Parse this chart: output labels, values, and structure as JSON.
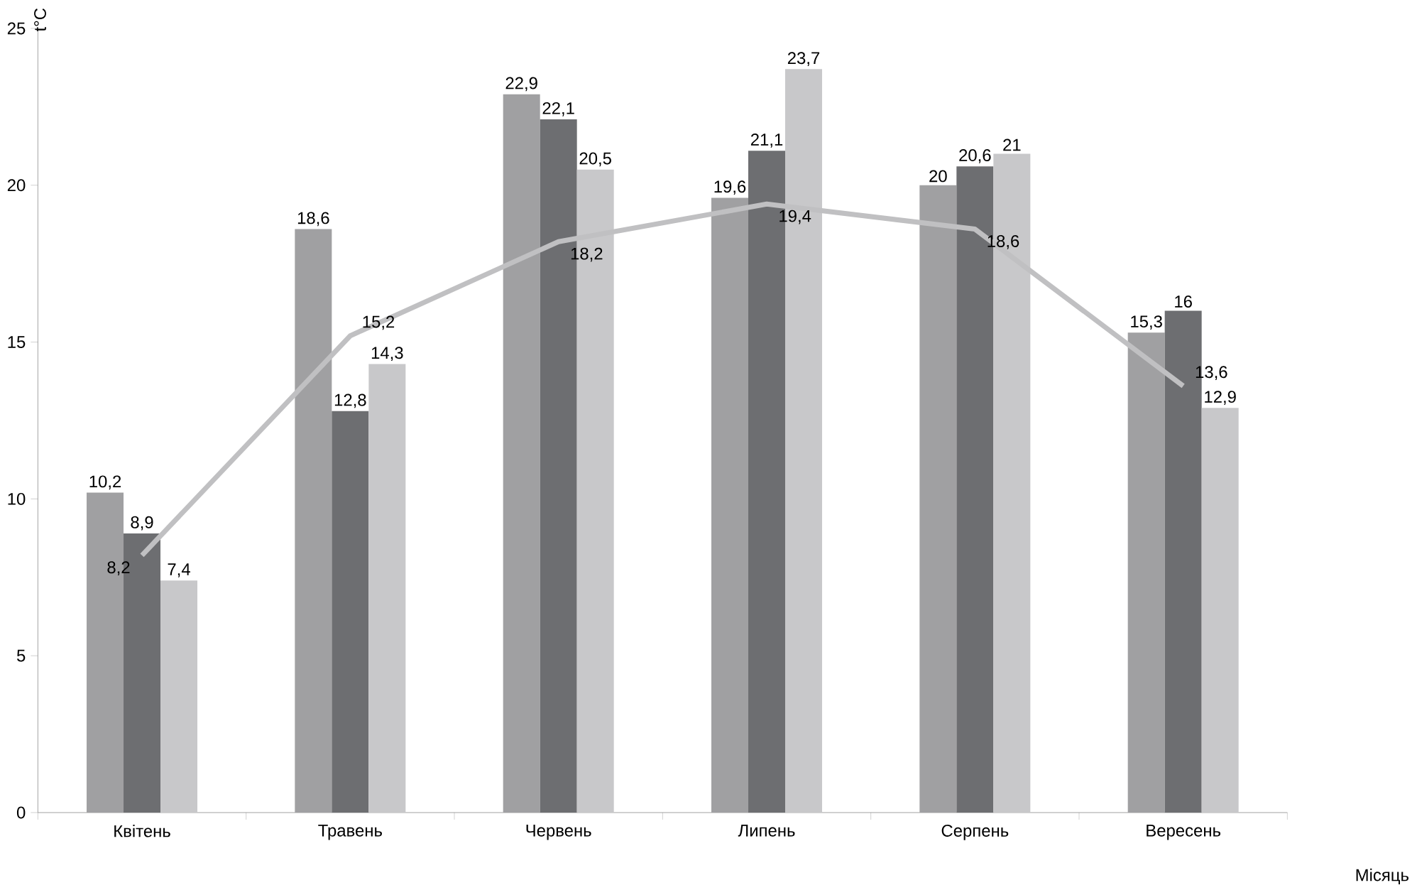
{
  "chart_data": {
    "type": "bar",
    "xlabel": "Місяць",
    "ylabel": "t°C",
    "categories": [
      "Квітень",
      "Травень",
      "Червень",
      "Липень",
      "Серпень",
      "Вересень"
    ],
    "series": [
      {
        "color": "#a0a0a2",
        "values": [
          10.2,
          18.6,
          22.9,
          19.6,
          20,
          15.3
        ],
        "value_labels": [
          "10,2",
          "18,6",
          "22,9",
          "19,6",
          "20",
          "15,3"
        ]
      },
      {
        "color": "#6d6e71",
        "values": [
          8.9,
          12.8,
          22.1,
          21.1,
          20.6,
          16
        ],
        "value_labels": [
          "8,9",
          "12,8",
          "22,1",
          "21,1",
          "20,6",
          "16"
        ]
      },
      {
        "color": "#c8c8ca",
        "values": [
          7.4,
          14.3,
          20.5,
          23.7,
          21,
          12.9
        ],
        "value_labels": [
          "7,4",
          "14,3",
          "20,5",
          "23,7",
          "21",
          "12,9"
        ]
      },
      {
        "type": "line",
        "color": "#c0c0c2",
        "values": [
          8.2,
          15.2,
          18.2,
          19.4,
          18.6,
          13.6
        ],
        "value_labels": [
          "8,2",
          "15,2",
          "18,2",
          "19,4",
          "18,6",
          "13,6"
        ]
      }
    ],
    "ylim": [
      0,
      25
    ],
    "yticks": [
      0,
      5,
      10,
      15,
      20,
      25
    ],
    "grid": false,
    "marker": "none",
    "line_style": "solid"
  }
}
